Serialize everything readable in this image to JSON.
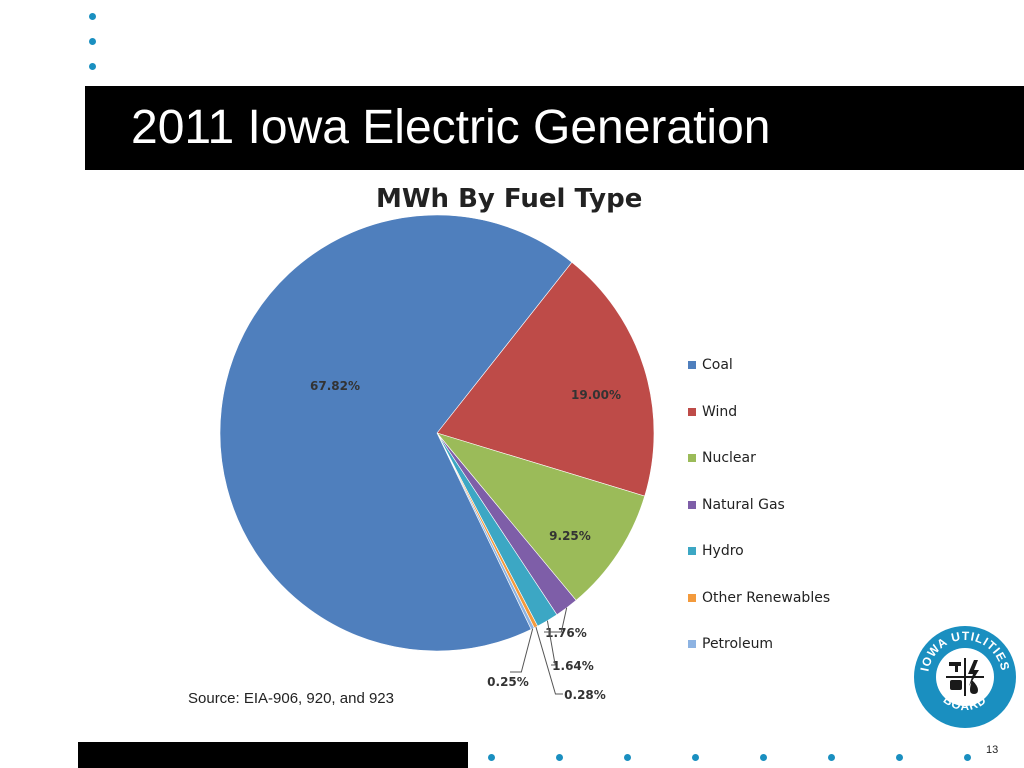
{
  "slide": {
    "title": "2011 Iowa Electric Generation",
    "source": "Source:  EIA-906, 920, and 923",
    "page_number": "13"
  },
  "logo": {
    "text_top": "IOWA UTILITIES",
    "text_bottom": "BOARD",
    "color": "#1a8fc0"
  },
  "chart_data": {
    "type": "pie",
    "title": "MWh By Fuel Type",
    "legend_position": "right",
    "slices": [
      {
        "label": "Coal",
        "value": 67.82,
        "display": "67.82%",
        "color": "#4f7fbd"
      },
      {
        "label": "Wind",
        "value": 19.0,
        "display": "19.00%",
        "color": "#be4b48"
      },
      {
        "label": "Nuclear",
        "value": 9.25,
        "display": "9.25%",
        "color": "#9bbb59"
      },
      {
        "label": "Natural Gas",
        "value": 1.76,
        "display": "1.76%",
        "color": "#7e5ea8"
      },
      {
        "label": "Hydro",
        "value": 1.64,
        "display": "1.64%",
        "color": "#3ca7c4"
      },
      {
        "label": "Other Renewables",
        "value": 0.28,
        "display": "0.28%",
        "color": "#f39a3c"
      },
      {
        "label": "Petroleum",
        "value": 0.25,
        "display": "0.25%",
        "color": "#8db3e2"
      }
    ]
  }
}
